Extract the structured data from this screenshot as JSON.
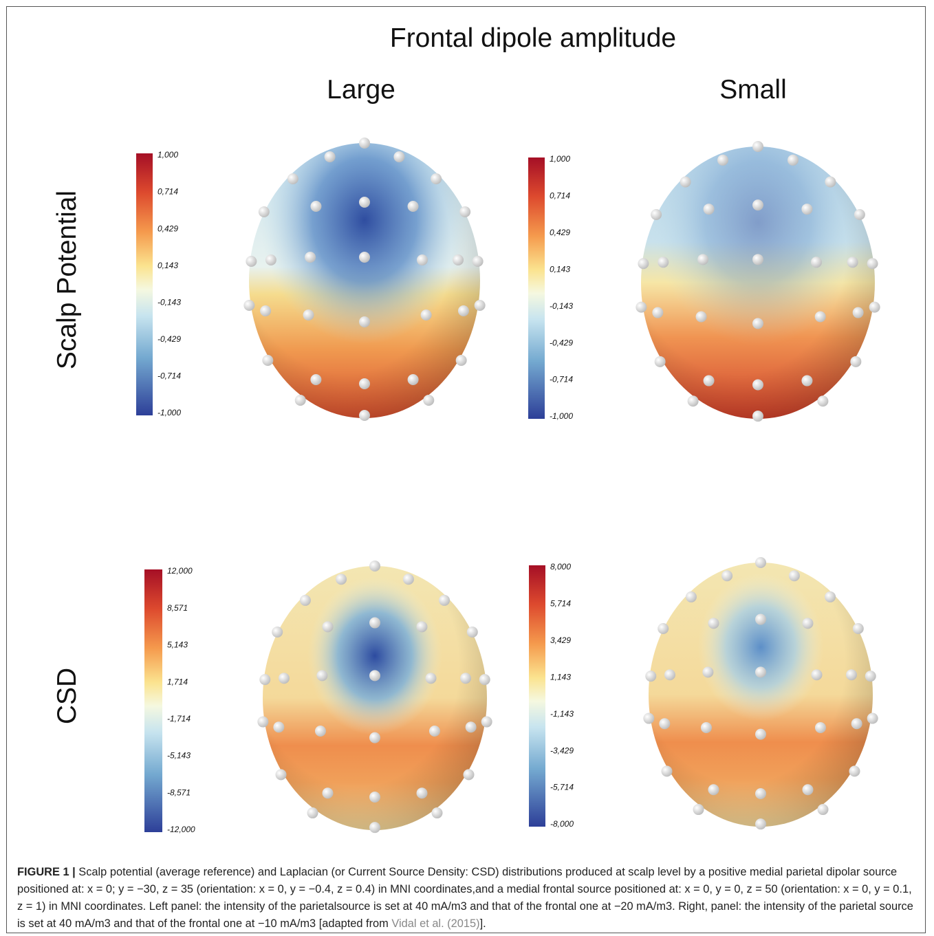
{
  "title": "Frontal dipole amplitude",
  "columns": [
    "Large",
    "Small"
  ],
  "rows": [
    "Scalp Potential",
    "CSD"
  ],
  "panels": [
    {
      "colorbar": [
        "1,000",
        "0,714",
        "0,429",
        "0,143",
        "-0,143",
        "-0,429",
        "-0,714",
        "-1,000"
      ]
    },
    {
      "colorbar": [
        "1,000",
        "0,714",
        "0,429",
        "0,143",
        "-0,143",
        "-0,429",
        "-0,714",
        "-1,000"
      ]
    },
    {
      "colorbar": [
        "12,000",
        "8,571",
        "5,143",
        "1,714",
        "-1,714",
        "-5,143",
        "-8,571",
        "-12,000"
      ]
    },
    {
      "colorbar": [
        "8,000",
        "5,714",
        "3,429",
        "1,143",
        "-1,143",
        "-3,429",
        "-5,714",
        "-8,000"
      ]
    }
  ],
  "caption": {
    "label": "FIGURE 1 |",
    "text": "Scalp potential (average reference) and Laplacian (or Current Source Density: CSD) distributions produced at scalp level by a positive medial parietal dipolar source positioned at: x = 0; y = −30, z = 35 (orientation: x = 0, y = −0.4, z = 0.4) in MNI coordinates,and a medial frontal source positioned at: x = 0, y = 0, z = 50 (orientation: x = 0, y = 0.1, z = 1) in MNI coordinates. Left panel: the intensity of the parietalsource is set at 40 mA/m3 and that of the frontal one at −20 mA/m3. Right, panel: the intensity of the parietal source is set at 40 mA/m3 and that of the frontal one at −10 mA/m3 [adapted from",
    "reference": "Vidal et al. (2015)",
    "end": "]."
  }
}
